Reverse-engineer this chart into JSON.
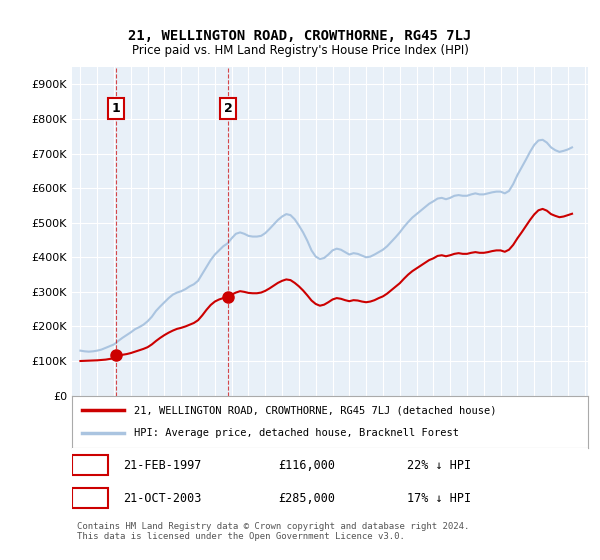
{
  "title": "21, WELLINGTON ROAD, CROWTHORNE, RG45 7LJ",
  "subtitle": "Price paid vs. HM Land Registry's House Price Index (HPI)",
  "ylabel": "",
  "xlabel": "",
  "ylim": [
    0,
    950000
  ],
  "yticks": [
    0,
    100000,
    200000,
    300000,
    400000,
    500000,
    600000,
    700000,
    800000,
    900000
  ],
  "ytick_labels": [
    "£0",
    "£100K",
    "£200K",
    "£300K",
    "£400K",
    "£500K",
    "£600K",
    "£700K",
    "£800K",
    "£900K"
  ],
  "hpi_color": "#aac4e0",
  "price_color": "#cc0000",
  "bg_color": "#e8f0f8",
  "plot_bg": "#e8f0f8",
  "marker_color": "#cc0000",
  "sale1_x": 1997.12,
  "sale1_y": 116000,
  "sale1_label": "1",
  "sale1_date": "21-FEB-1997",
  "sale1_price": "£116,000",
  "sale1_hpi": "22% ↓ HPI",
  "sale2_x": 2003.8,
  "sale2_y": 285000,
  "sale2_label": "2",
  "sale2_date": "21-OCT-2003",
  "sale2_price": "£285,000",
  "sale2_hpi": "17% ↓ HPI",
  "legend_line1": "21, WELLINGTON ROAD, CROWTHORNE, RG45 7LJ (detached house)",
  "legend_line2": "HPI: Average price, detached house, Bracknell Forest",
  "footer": "Contains HM Land Registry data © Crown copyright and database right 2024.\nThis data is licensed under the Open Government Licence v3.0.",
  "hpi_data_x": [
    1995.0,
    1995.25,
    1995.5,
    1995.75,
    1996.0,
    1996.25,
    1996.5,
    1996.75,
    1997.0,
    1997.25,
    1997.5,
    1997.75,
    1998.0,
    1998.25,
    1998.5,
    1998.75,
    1999.0,
    1999.25,
    1999.5,
    1999.75,
    2000.0,
    2000.25,
    2000.5,
    2000.75,
    2001.0,
    2001.25,
    2001.5,
    2001.75,
    2002.0,
    2002.25,
    2002.5,
    2002.75,
    2003.0,
    2003.25,
    2003.5,
    2003.75,
    2004.0,
    2004.25,
    2004.5,
    2004.75,
    2005.0,
    2005.25,
    2005.5,
    2005.75,
    2006.0,
    2006.25,
    2006.5,
    2006.75,
    2007.0,
    2007.25,
    2007.5,
    2007.75,
    2008.0,
    2008.25,
    2008.5,
    2008.75,
    2009.0,
    2009.25,
    2009.5,
    2009.75,
    2010.0,
    2010.25,
    2010.5,
    2010.75,
    2011.0,
    2011.25,
    2011.5,
    2011.75,
    2012.0,
    2012.25,
    2012.5,
    2012.75,
    2013.0,
    2013.25,
    2013.5,
    2013.75,
    2014.0,
    2014.25,
    2014.5,
    2014.75,
    2015.0,
    2015.25,
    2015.5,
    2015.75,
    2016.0,
    2016.25,
    2016.5,
    2016.75,
    2017.0,
    2017.25,
    2017.5,
    2017.75,
    2018.0,
    2018.25,
    2018.5,
    2018.75,
    2019.0,
    2019.25,
    2019.5,
    2019.75,
    2020.0,
    2020.25,
    2020.5,
    2020.75,
    2021.0,
    2021.25,
    2021.5,
    2021.75,
    2022.0,
    2022.25,
    2022.5,
    2022.75,
    2023.0,
    2023.25,
    2023.5,
    2023.75,
    2024.0,
    2024.25
  ],
  "hpi_data_y": [
    130000,
    128000,
    127000,
    128000,
    130000,
    133000,
    138000,
    143000,
    148000,
    158000,
    167000,
    175000,
    183000,
    192000,
    198000,
    205000,
    215000,
    228000,
    245000,
    258000,
    270000,
    282000,
    292000,
    298000,
    302000,
    308000,
    316000,
    322000,
    332000,
    352000,
    372000,
    392000,
    408000,
    420000,
    432000,
    440000,
    455000,
    468000,
    472000,
    468000,
    462000,
    460000,
    460000,
    462000,
    470000,
    482000,
    495000,
    508000,
    518000,
    525000,
    522000,
    510000,
    492000,
    472000,
    448000,
    420000,
    402000,
    395000,
    398000,
    408000,
    420000,
    425000,
    422000,
    415000,
    408000,
    412000,
    410000,
    405000,
    400000,
    402000,
    408000,
    415000,
    422000,
    432000,
    445000,
    458000,
    472000,
    488000,
    502000,
    515000,
    525000,
    535000,
    545000,
    555000,
    562000,
    570000,
    572000,
    568000,
    572000,
    578000,
    580000,
    578000,
    578000,
    582000,
    585000,
    582000,
    582000,
    585000,
    588000,
    590000,
    590000,
    585000,
    592000,
    612000,
    638000,
    660000,
    682000,
    705000,
    725000,
    738000,
    740000,
    732000,
    718000,
    710000,
    705000,
    708000,
    712000,
    718000
  ],
  "price_data_x": [
    1995.0,
    1995.25,
    1995.5,
    1995.75,
    1996.0,
    1996.25,
    1996.5,
    1996.75,
    1997.0,
    1997.25,
    1997.5,
    1997.75,
    1998.0,
    1998.25,
    1998.5,
    1998.75,
    1999.0,
    1999.25,
    1999.5,
    1999.75,
    2000.0,
    2000.25,
    2000.5,
    2000.75,
    2001.0,
    2001.25,
    2001.5,
    2001.75,
    2002.0,
    2002.25,
    2002.5,
    2002.75,
    2003.0,
    2003.25,
    2003.5,
    2003.75,
    2004.0,
    2004.25,
    2004.5,
    2004.75,
    2005.0,
    2005.25,
    2005.5,
    2005.75,
    2006.0,
    2006.25,
    2006.5,
    2006.75,
    2007.0,
    2007.25,
    2007.5,
    2007.75,
    2008.0,
    2008.25,
    2008.5,
    2008.75,
    2009.0,
    2009.25,
    2009.5,
    2009.75,
    2010.0,
    2010.25,
    2010.5,
    2010.75,
    2011.0,
    2011.25,
    2011.5,
    2011.75,
    2012.0,
    2012.25,
    2012.5,
    2012.75,
    2013.0,
    2013.25,
    2013.5,
    2013.75,
    2014.0,
    2014.25,
    2014.5,
    2014.75,
    2015.0,
    2015.25,
    2015.5,
    2015.75,
    2016.0,
    2016.25,
    2016.5,
    2016.75,
    2017.0,
    2017.25,
    2017.5,
    2017.75,
    2018.0,
    2018.25,
    2018.5,
    2018.75,
    2019.0,
    2019.25,
    2019.5,
    2019.75,
    2020.0,
    2020.25,
    2020.5,
    2020.75,
    2021.0,
    2021.25,
    2021.5,
    2021.75,
    2022.0,
    2022.25,
    2022.5,
    2022.75,
    2023.0,
    2023.25,
    2023.5,
    2023.75,
    2024.0,
    2024.25
  ],
  "price_data_y": [
    100000,
    100500,
    101000,
    101500,
    102000,
    103000,
    104000,
    106000,
    108000,
    116000,
    118000,
    120000,
    123000,
    127000,
    131000,
    135000,
    140000,
    148000,
    158000,
    167000,
    175000,
    182000,
    188000,
    193000,
    196000,
    200000,
    205000,
    210000,
    218000,
    232000,
    248000,
    262000,
    272000,
    278000,
    282000,
    285000,
    292000,
    298000,
    302000,
    300000,
    297000,
    296000,
    296000,
    298000,
    303000,
    310000,
    318000,
    326000,
    332000,
    336000,
    334000,
    326000,
    316000,
    304000,
    290000,
    275000,
    265000,
    260000,
    263000,
    270000,
    278000,
    282000,
    280000,
    276000,
    273000,
    276000,
    275000,
    272000,
    270000,
    272000,
    276000,
    282000,
    287000,
    295000,
    305000,
    315000,
    325000,
    338000,
    350000,
    360000,
    368000,
    376000,
    384000,
    392000,
    397000,
    404000,
    406000,
    403000,
    406000,
    410000,
    412000,
    410000,
    410000,
    413000,
    415000,
    413000,
    413000,
    415000,
    418000,
    420000,
    420000,
    416000,
    422000,
    436000,
    455000,
    472000,
    490000,
    508000,
    524000,
    536000,
    540000,
    535000,
    525000,
    520000,
    516000,
    518000,
    522000,
    526000
  ],
  "xlim": [
    1994.5,
    2025.2
  ],
  "xticks": [
    1995,
    1996,
    1997,
    1998,
    1999,
    2000,
    2001,
    2002,
    2003,
    2004,
    2005,
    2006,
    2007,
    2008,
    2009,
    2010,
    2011,
    2012,
    2013,
    2014,
    2015,
    2016,
    2017,
    2018,
    2019,
    2020,
    2021,
    2022,
    2023,
    2024,
    2025
  ]
}
